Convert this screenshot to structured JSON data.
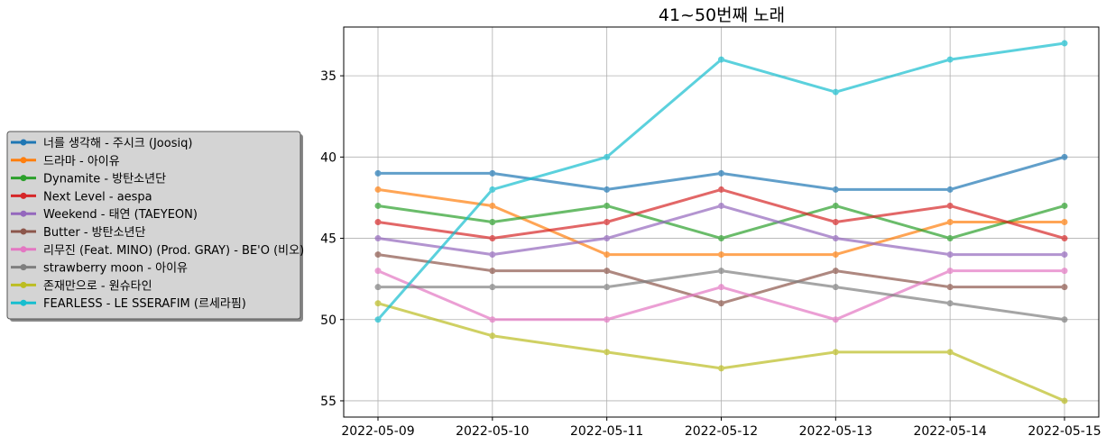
{
  "chart_data": {
    "type": "line",
    "title": "41~50번째 노래",
    "xlabel": "",
    "ylabel": "",
    "x": [
      "2022-05-09",
      "2022-05-10",
      "2022-05-11",
      "2022-05-12",
      "2022-05-13",
      "2022-05-14",
      "2022-05-15"
    ],
    "ylim": [
      56,
      32
    ],
    "y_inverted": true,
    "yticks": [
      35,
      40,
      45,
      50,
      55
    ],
    "grid": true,
    "legend_position": "left",
    "series": [
      {
        "name": "너를 생각해 - 주시크 (Joosiq)",
        "color": "#1f77b4",
        "values": [
          41,
          41,
          42,
          41,
          42,
          42,
          40
        ]
      },
      {
        "name": "드라마 - 아이유",
        "color": "#ff7f0e",
        "values": [
          42,
          43,
          46,
          46,
          46,
          44,
          44
        ]
      },
      {
        "name": "Dynamite - 방탄소년단",
        "color": "#2ca02c",
        "values": [
          43,
          44,
          43,
          45,
          43,
          45,
          43
        ]
      },
      {
        "name": "Next Level - aespa",
        "color": "#d62728",
        "values": [
          44,
          45,
          44,
          42,
          44,
          43,
          45
        ]
      },
      {
        "name": "Weekend - 태연 (TAEYEON)",
        "color": "#9467bd",
        "values": [
          45,
          46,
          45,
          43,
          45,
          46,
          46
        ]
      },
      {
        "name": "Butter - 방탄소년단",
        "color": "#8c564b",
        "values": [
          46,
          47,
          47,
          49,
          47,
          48,
          48
        ]
      },
      {
        "name": "리무진 (Feat. MINO) (Prod. GRAY) - BE'O (비오)",
        "color": "#e377c2",
        "values": [
          47,
          50,
          50,
          48,
          50,
          47,
          47
        ]
      },
      {
        "name": "strawberry moon - 아이유",
        "color": "#7f7f7f",
        "values": [
          48,
          48,
          48,
          47,
          48,
          49,
          50
        ]
      },
      {
        "name": "존재만으로 - 원슈타인",
        "color": "#bcbd22",
        "values": [
          49,
          51,
          52,
          53,
          52,
          52,
          55
        ]
      },
      {
        "name": "FEARLESS - LE SSERAFIM (르세라핌)",
        "color": "#17becf",
        "values": [
          50,
          42,
          40,
          34,
          36,
          34,
          33
        ]
      }
    ]
  }
}
